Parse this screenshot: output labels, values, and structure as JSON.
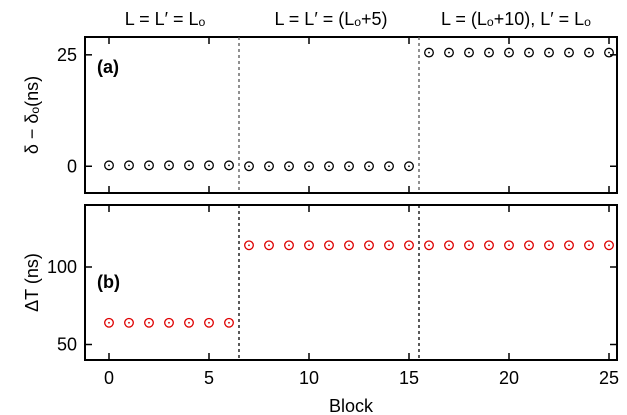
{
  "chart_data": {
    "type": "scatter",
    "region_titles": [
      "L = L′ = Lₒ",
      "L = L′ = (Lₒ+5)",
      "L = (Lₒ+10), L′ = Lₒ"
    ],
    "xlabel": "Block",
    "xlim": [
      -1.2,
      25.4
    ],
    "xticks": [
      0,
      5,
      10,
      15,
      20,
      25
    ],
    "boundaries": [
      6.5,
      15.5
    ],
    "panels": [
      {
        "label": "(a)",
        "ylabel": "δ − δₒ(ns)",
        "ylim": [
          -6,
          29
        ],
        "yticks": [
          0,
          25
        ],
        "marker_color": "#000000",
        "boundary_color": "#555555",
        "series": [
          {
            "x": [
              0,
              1,
              2,
              3,
              4,
              5,
              6,
              7,
              8,
              9,
              10,
              11,
              12,
              13,
              14,
              15,
              16,
              17,
              18,
              19,
              20,
              21,
              22,
              23,
              24,
              25
            ],
            "y": [
              0.2,
              0.2,
              0.2,
              0.2,
              0.2,
              0.2,
              0.2,
              0,
              0,
              0,
              0,
              0,
              0,
              0,
              0,
              0,
              25.5,
              25.5,
              25.5,
              25.5,
              25.5,
              25.5,
              25.5,
              25.5,
              25.5,
              25.5
            ]
          }
        ]
      },
      {
        "label": "(b)",
        "ylabel": "ΔT (ns)",
        "ylim": [
          40,
          140
        ],
        "yticks": [
          50,
          100
        ],
        "marker_color": "#dd0000",
        "boundary_color": "#000000",
        "series": [
          {
            "x": [
              0,
              1,
              2,
              3,
              4,
              5,
              6,
              7,
              8,
              9,
              10,
              11,
              12,
              13,
              14,
              15,
              16,
              17,
              18,
              19,
              20,
              21,
              22,
              23,
              24,
              25
            ],
            "y": [
              64,
              64,
              64,
              64,
              64,
              64,
              64,
              114,
              114,
              114,
              114,
              114,
              114,
              114,
              114,
              114,
              114,
              114,
              114,
              114,
              114,
              114,
              114,
              114,
              114,
              114
            ]
          }
        ]
      }
    ]
  }
}
